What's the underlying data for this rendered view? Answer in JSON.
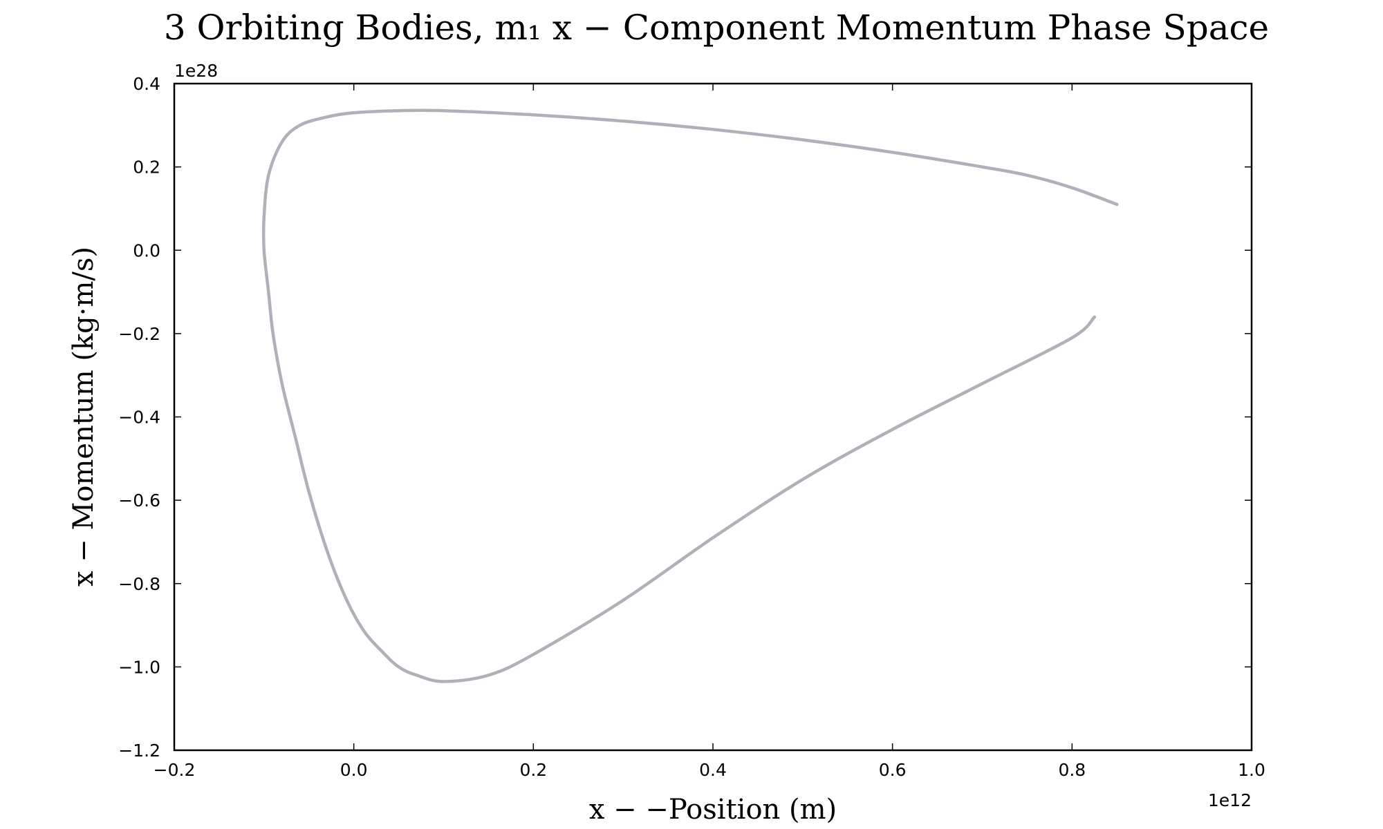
{
  "chart_data": {
    "type": "line",
    "title": "3 Orbiting Bodies, m₁ x − Component Momentum Phase Space",
    "xlabel": "x − −Position (m)",
    "ylabel": "x − Momentum (kg·m/s)",
    "x_offset_label": "1e12",
    "y_offset_label": "1e28",
    "xlim": [
      -0.2,
      1.0
    ],
    "ylim": [
      -1.2,
      0.4
    ],
    "x_ticks": [
      -0.2,
      0.0,
      0.2,
      0.4,
      0.6,
      0.8,
      1.0
    ],
    "x_tick_labels": [
      "−0.2",
      "0.0",
      "0.2",
      "0.4",
      "0.6",
      "0.8",
      "1.0"
    ],
    "y_ticks": [
      -1.2,
      -1.0,
      -0.8,
      -0.6,
      -0.4,
      -0.2,
      0.0,
      0.2,
      0.4
    ],
    "y_tick_labels": [
      "−1.2",
      "−1.0",
      "−0.8",
      "−0.6",
      "−0.4",
      "−0.2",
      "0.0",
      "0.2",
      "0.4"
    ],
    "grid": false,
    "series": [
      {
        "color": "#b0b0b8",
        "x": [
          0.85,
          0.8,
          0.75,
          0.7,
          0.6,
          0.5,
          0.4,
          0.3,
          0.2,
          0.1,
          0.05,
          0.0,
          -0.03,
          -0.06,
          -0.08,
          -0.095,
          -0.1,
          -0.1,
          -0.095,
          -0.09,
          -0.08,
          -0.065,
          -0.05,
          -0.03,
          -0.01,
          0.01,
          0.03,
          0.05,
          0.07,
          0.1,
          0.15,
          0.2,
          0.3,
          0.4,
          0.5,
          0.6,
          0.7,
          0.8,
          0.825
        ],
        "y": [
          0.11,
          0.15,
          0.18,
          0.2,
          0.235,
          0.265,
          0.29,
          0.31,
          0.325,
          0.335,
          0.335,
          0.33,
          0.32,
          0.3,
          0.26,
          0.18,
          0.08,
          0.0,
          -0.1,
          -0.2,
          -0.32,
          -0.45,
          -0.58,
          -0.72,
          -0.83,
          -0.91,
          -0.96,
          -1.0,
          -1.02,
          -1.035,
          -1.02,
          -0.97,
          -0.84,
          -0.69,
          -0.55,
          -0.43,
          -0.32,
          -0.21,
          -0.16
        ]
      }
    ]
  }
}
